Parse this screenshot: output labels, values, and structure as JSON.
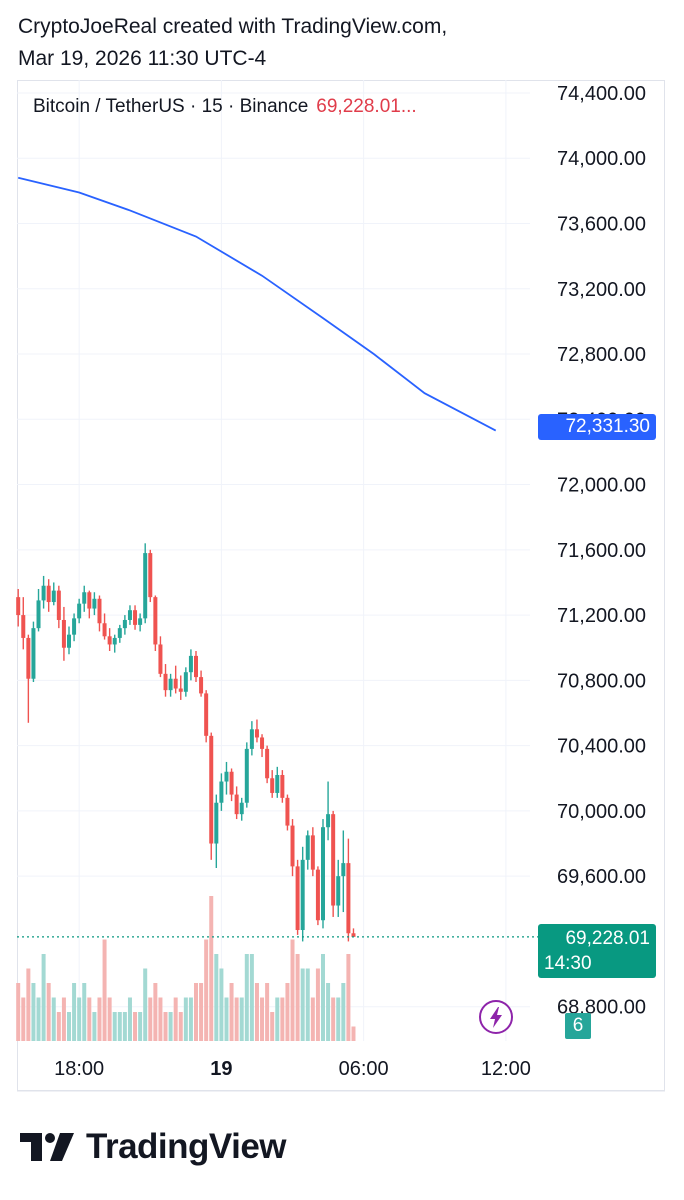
{
  "header": {
    "author_line": "CryptoJoeReal created with TradingView.com,",
    "date_line": "Mar 19, 2026 11:30 UTC-4"
  },
  "symbol": {
    "label": "Bitcoin / TetherUS · 15 · Binance",
    "price": "69,228.01..."
  },
  "tags": {
    "ma_value": "72,331.30",
    "last_price": "69,228.01",
    "countdown": "14:30",
    "count": "6"
  },
  "brand": {
    "name": "TradingView"
  },
  "colors": {
    "up": "#26a69a",
    "down": "#ef5350",
    "ma": "#2962ff",
    "grid": "#f0f3fa"
  },
  "chart_data": {
    "type": "candlestick",
    "y_ticks": [
      "74,400.00",
      "74,000.00",
      "73,600.00",
      "73,200.00",
      "72,800.00",
      "72,400.00",
      "72,000.00",
      "71,600.00",
      "71,200.00",
      "70,800.00",
      "70,400.00",
      "70,000.00",
      "69,600.00",
      "68,800.00"
    ],
    "y_tick_values": [
      74400,
      74000,
      73600,
      73200,
      72800,
      72400,
      72000,
      71600,
      71200,
      70800,
      70400,
      70000,
      69600,
      68800
    ],
    "ylim": [
      68530,
      74430
    ],
    "x_ticks": [
      {
        "label": "18:00",
        "index": 12,
        "bold": false
      },
      {
        "label": "19",
        "index": 40,
        "bold": true
      },
      {
        "label": "06:00",
        "index": 68,
        "bold": false
      },
      {
        "label": "12:00",
        "index": 96,
        "bold": false
      }
    ],
    "ma_series": {
      "start": [
        73880,
        0
      ],
      "points": [
        [
          73880,
          0
        ],
        [
          73790,
          12
        ],
        [
          73680,
          22
        ],
        [
          73520,
          35
        ],
        [
          73280,
          48
        ],
        [
          73020,
          60
        ],
        [
          72800,
          70
        ],
        [
          72560,
          80
        ],
        [
          72331,
          94
        ]
      ]
    },
    "last_price": 69228.01,
    "candles": [
      [
        71310,
        71360,
        71130,
        71200,
        4
      ],
      [
        71200,
        71310,
        70990,
        71060,
        3
      ],
      [
        71060,
        71080,
        70540,
        70810,
        5
      ],
      [
        70810,
        71160,
        70790,
        71120,
        4
      ],
      [
        71120,
        71360,
        71100,
        71290,
        3
      ],
      [
        71290,
        71440,
        71240,
        71380,
        6
      ],
      [
        71380,
        71420,
        71220,
        71280,
        4
      ],
      [
        71280,
        71400,
        71260,
        71350,
        3
      ],
      [
        71350,
        71380,
        71120,
        71170,
        2
      ],
      [
        71170,
        71250,
        70920,
        71000,
        3
      ],
      [
        71000,
        71130,
        70960,
        71080,
        2
      ],
      [
        71080,
        71210,
        71040,
        71180,
        4
      ],
      [
        71180,
        71300,
        71150,
        71270,
        3
      ],
      [
        71270,
        71380,
        71220,
        71340,
        4
      ],
      [
        71340,
        71350,
        71180,
        71240,
        3
      ],
      [
        71240,
        71340,
        71200,
        71300,
        2
      ],
      [
        71300,
        71320,
        71100,
        71150,
        3
      ],
      [
        71150,
        71210,
        71050,
        71070,
        7
      ],
      [
        71070,
        71120,
        70980,
        71020,
        3
      ],
      [
        71020,
        71080,
        70970,
        71060,
        2
      ],
      [
        71060,
        71140,
        71030,
        71120,
        2
      ],
      [
        71120,
        71200,
        71080,
        71170,
        2
      ],
      [
        71170,
        71260,
        71140,
        71230,
        3
      ],
      [
        71230,
        71260,
        71110,
        71140,
        2
      ],
      [
        71140,
        71210,
        71100,
        71180,
        2
      ],
      [
        71180,
        71640,
        71150,
        71580,
        5
      ],
      [
        71580,
        71600,
        71280,
        71310,
        3
      ],
      [
        71310,
        71320,
        70980,
        71020,
        4
      ],
      [
        71020,
        71070,
        70820,
        70840,
        3
      ],
      [
        70840,
        70900,
        70700,
        70740,
        2
      ],
      [
        70740,
        70840,
        70700,
        70810,
        2
      ],
      [
        70810,
        70890,
        70720,
        70750,
        3
      ],
      [
        70750,
        70830,
        70680,
        70730,
        2
      ],
      [
        70730,
        70880,
        70700,
        70850,
        3
      ],
      [
        70850,
        70990,
        70800,
        70950,
        3
      ],
      [
        70950,
        70980,
        70790,
        70820,
        4
      ],
      [
        70820,
        70860,
        70700,
        70720,
        4
      ],
      [
        70720,
        70740,
        70420,
        70460,
        7
      ],
      [
        70460,
        70480,
        69700,
        69800,
        10
      ],
      [
        69800,
        70100,
        69650,
        70050,
        6
      ],
      [
        70050,
        70230,
        70000,
        70180,
        5
      ],
      [
        70180,
        70300,
        70100,
        70240,
        3
      ],
      [
        70240,
        70260,
        70060,
        70100,
        4
      ],
      [
        70100,
        70150,
        69950,
        69980,
        3
      ],
      [
        69980,
        70080,
        69940,
        70050,
        3
      ],
      [
        70050,
        70420,
        70020,
        70380,
        6
      ],
      [
        70380,
        70550,
        70340,
        70500,
        6
      ],
      [
        70500,
        70560,
        70420,
        70450,
        4
      ],
      [
        70450,
        70470,
        70330,
        70380,
        3
      ],
      [
        70380,
        70400,
        70170,
        70200,
        4
      ],
      [
        70200,
        70250,
        70080,
        70110,
        2
      ],
      [
        70110,
        70270,
        70080,
        70220,
        3
      ],
      [
        70220,
        70250,
        70050,
        70080,
        3
      ],
      [
        70080,
        70100,
        69880,
        69910,
        4
      ],
      [
        69910,
        69950,
        69600,
        69660,
        7
      ],
      [
        69660,
        69700,
        69240,
        69270,
        6
      ],
      [
        69270,
        69780,
        69200,
        69700,
        5
      ],
      [
        69700,
        69880,
        69640,
        69850,
        5
      ],
      [
        69850,
        69900,
        69600,
        69640,
        3
      ],
      [
        69640,
        69660,
        69300,
        69330,
        5
      ],
      [
        69330,
        69950,
        69280,
        69900,
        6
      ],
      [
        69900,
        70180,
        69820,
        69980,
        4
      ],
      [
        69980,
        70000,
        69350,
        69420,
        3
      ],
      [
        69420,
        69700,
        69350,
        69600,
        3
      ],
      [
        69600,
        69880,
        69380,
        69680,
        4
      ],
      [
        69680,
        69830,
        69200,
        69250,
        6
      ],
      [
        69250,
        69280,
        69228,
        69228,
        1
      ]
    ]
  }
}
